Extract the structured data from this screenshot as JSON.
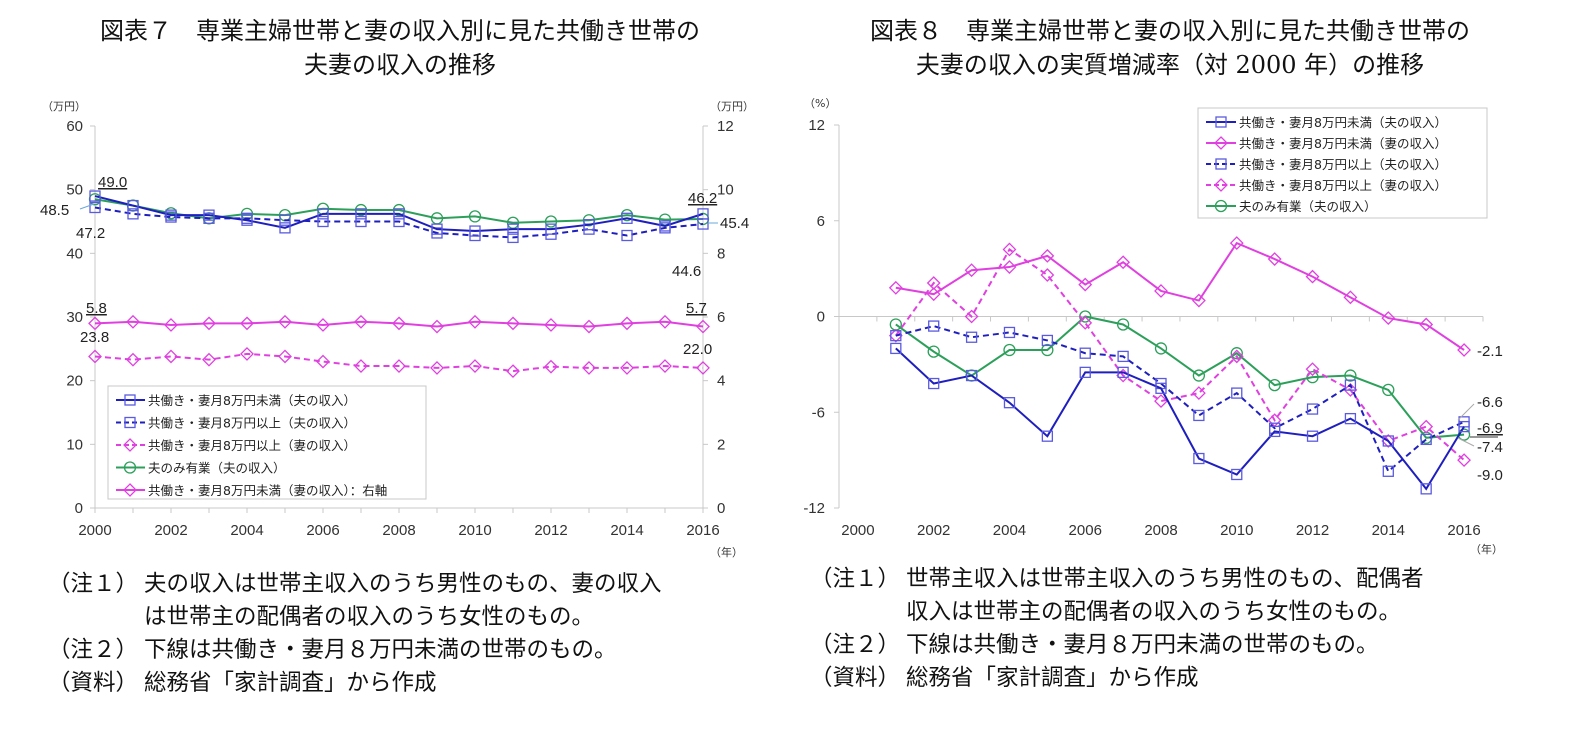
{
  "figures": [
    {
      "title_line1": "図表７　専業主婦世帯と妻の収入別に見た共働き世帯の",
      "title_line2": "夫妻の収入の推移",
      "notes": [
        {
          "label": "（注１）",
          "lines": [
            "夫の収入は世帯主収入のうち男性のもの、妻の収入",
            "は世帯主の配偶者の収入のうち女性のもの。"
          ]
        },
        {
          "label": "（注２）",
          "lines": [
            "下線は共働き・妻月８万円未満の世帯のもの。"
          ]
        },
        {
          "label": "（資料）",
          "lines": [
            "総務省「家計調査」から作成"
          ]
        }
      ]
    },
    {
      "title_line1": "図表８　専業主婦世帯と妻の収入別に見た共働き世帯の",
      "title_line2": "夫妻の収入の実質増減率（対 2000 年）の推移",
      "notes": [
        {
          "label": "（注１）",
          "lines": [
            "世帯主収入は世帯主収入のうち男性のもの、配偶者",
            "収入は世帯主の配偶者の収入のうち女性のもの。"
          ]
        },
        {
          "label": "（注２）",
          "lines": [
            "下線は共働き・妻月８万円未満の世帯のもの。"
          ]
        },
        {
          "label": "（資料）",
          "lines": [
            "総務省「家計調査」から作成"
          ]
        }
      ]
    }
  ],
  "chart_data": [
    {
      "type": "line",
      "title": "専業主婦世帯と妻の収入別に見た共働き世帯の夫妻の収入の推移",
      "xlabel": "（年）",
      "ylabel": "（万円）",
      "y2label": "（万円）",
      "ylim": [
        0,
        60
      ],
      "y2lim": [
        0,
        12
      ],
      "yticks": [
        "0",
        "10",
        "20",
        "30",
        "40",
        "50",
        "60"
      ],
      "y2ticks": [
        "0",
        "2",
        "4",
        "6",
        "8",
        "10",
        "12"
      ],
      "xticks": [
        "2000",
        "2002",
        "2004",
        "2006",
        "2008",
        "2010",
        "2012",
        "2014",
        "2016"
      ],
      "x": [
        2000,
        2001,
        2002,
        2003,
        2004,
        2005,
        2006,
        2007,
        2008,
        2009,
        2010,
        2011,
        2012,
        2013,
        2014,
        2015,
        2016
      ],
      "grid": false,
      "legend_position": "bottom-left",
      "series": [
        {
          "name": "共働き・妻月8万円未満（夫の収入）",
          "color": "#1f1fbf",
          "dash": "solid",
          "marker": "square",
          "axis": "left",
          "values": [
            49.0,
            47.5,
            46.0,
            46.0,
            45.2,
            44.0,
            46.2,
            46.2,
            46.2,
            43.8,
            43.5,
            43.8,
            43.8,
            44.5,
            45.5,
            44.3,
            46.2
          ]
        },
        {
          "name": "共働き・妻月8万円以上（夫の収入）",
          "color": "#1f1fbf",
          "dash": "dashed",
          "marker": "square",
          "axis": "left",
          "values": [
            47.2,
            46.2,
            45.7,
            45.5,
            45.5,
            45.2,
            45.0,
            45.0,
            45.0,
            43.2,
            42.8,
            42.5,
            43.0,
            43.8,
            42.8,
            44.0,
            44.6
          ]
        },
        {
          "name": "共働き・妻月8万円以上（妻の収入）",
          "color": "#e040e0",
          "dash": "dashed",
          "marker": "diamond",
          "axis": "left",
          "values": [
            23.8,
            23.3,
            23.8,
            23.3,
            24.2,
            23.8,
            23.0,
            22.3,
            22.3,
            22.0,
            22.3,
            21.5,
            22.2,
            22.0,
            22.0,
            22.3,
            22.0
          ]
        },
        {
          "name": "夫のみ有業（夫の収入）",
          "color": "#2ca05a",
          "dash": "solid",
          "marker": "circle",
          "axis": "left",
          "values": [
            48.5,
            47.5,
            46.3,
            45.5,
            46.2,
            46.0,
            47.0,
            46.8,
            46.8,
            45.5,
            45.8,
            44.8,
            45.0,
            45.2,
            46.0,
            45.3,
            45.4
          ]
        },
        {
          "name": "共働き・妻月8万円未満（妻の収入）：右軸",
          "color": "#e040e0",
          "dash": "solid",
          "marker": "diamond",
          "axis": "right",
          "values": [
            5.8,
            5.85,
            5.75,
            5.8,
            5.8,
            5.85,
            5.75,
            5.85,
            5.8,
            5.7,
            5.85,
            5.8,
            5.75,
            5.7,
            5.8,
            5.85,
            5.7
          ]
        }
      ],
      "annotations": [
        {
          "text": "49.0",
          "underline": true
        },
        {
          "text": "48.5",
          "underline": false
        },
        {
          "text": "47.2",
          "underline": false
        },
        {
          "text": "46.2",
          "underline": true
        },
        {
          "text": "45.4",
          "underline": false
        },
        {
          "text": "44.6",
          "underline": false
        },
        {
          "text": "5.8",
          "underline": true
        },
        {
          "text": "23.8",
          "underline": false
        },
        {
          "text": "5.7",
          "underline": true
        },
        {
          "text": "22.0",
          "underline": false
        }
      ]
    },
    {
      "type": "line",
      "title": "専業主婦世帯と妻の収入別に見た共働き世帯の夫妻の収入の実質増減率（対2000年）の推移",
      "xlabel": "（年）",
      "ylabel": "（%）",
      "ylim": [
        -12,
        12
      ],
      "yticks": [
        "-12",
        "-6",
        "0",
        "6",
        "12"
      ],
      "xticks": [
        "2000",
        "2002",
        "2004",
        "2006",
        "2008",
        "2010",
        "2012",
        "2014",
        "2016"
      ],
      "x": [
        2001,
        2002,
        2003,
        2004,
        2005,
        2006,
        2007,
        2008,
        2009,
        2010,
        2011,
        2012,
        2013,
        2014,
        2015,
        2016
      ],
      "grid": false,
      "legend_position": "top-right",
      "series": [
        {
          "name": "共働き・妻月8万円未満（夫の収入）",
          "color": "#1f1fbf",
          "dash": "solid",
          "marker": "square",
          "values": [
            -2.0,
            -4.2,
            -3.7,
            -5.4,
            -7.5,
            -3.5,
            -3.5,
            -4.5,
            -8.9,
            -9.9,
            -7.2,
            -7.5,
            -6.4,
            -7.8,
            -10.8,
            -6.9
          ]
        },
        {
          "name": "共働き・妻月8万円未満（妻の収入）",
          "color": "#e040e0",
          "dash": "solid",
          "marker": "diamond",
          "values": [
            1.8,
            1.4,
            2.9,
            3.1,
            3.8,
            2.0,
            3.4,
            1.6,
            1.0,
            4.6,
            3.6,
            2.5,
            1.2,
            -0.1,
            -0.5,
            -2.1
          ]
        },
        {
          "name": "共働き・妻月8万円以上（夫の収入）",
          "color": "#1f1fbf",
          "dash": "dashed",
          "marker": "square",
          "values": [
            -1.2,
            -0.6,
            -1.3,
            -1.0,
            -1.5,
            -2.3,
            -2.5,
            -4.2,
            -6.2,
            -4.8,
            -7.0,
            -5.8,
            -4.3,
            -9.7,
            -7.7,
            -6.6
          ]
        },
        {
          "name": "共働き・妻月8万円以上（妻の収入）",
          "color": "#e040e0",
          "dash": "dashed",
          "marker": "diamond",
          "values": [
            -1.2,
            2.1,
            0.0,
            4.2,
            2.6,
            -0.4,
            -3.7,
            -5.3,
            -4.8,
            -2.5,
            -6.5,
            -3.3,
            -4.6,
            -7.8,
            -6.9,
            -9.0
          ]
        },
        {
          "name": "夫のみ有業（夫の収入）",
          "color": "#2ca05a",
          "dash": "solid",
          "marker": "circle",
          "values": [
            -0.5,
            -2.2,
            -3.7,
            -2.1,
            -2.1,
            0.0,
            -0.5,
            -2.0,
            -3.7,
            -2.3,
            -4.3,
            -3.8,
            -3.7,
            -4.6,
            -7.6,
            -7.4
          ]
        }
      ],
      "annotations": [
        {
          "text": "-2.1",
          "underline": false
        },
        {
          "text": "-6.6",
          "underline": false
        },
        {
          "text": "-6.9",
          "underline": true
        },
        {
          "text": "-7.4",
          "underline": false
        },
        {
          "text": "-9.0",
          "underline": false
        }
      ]
    }
  ]
}
